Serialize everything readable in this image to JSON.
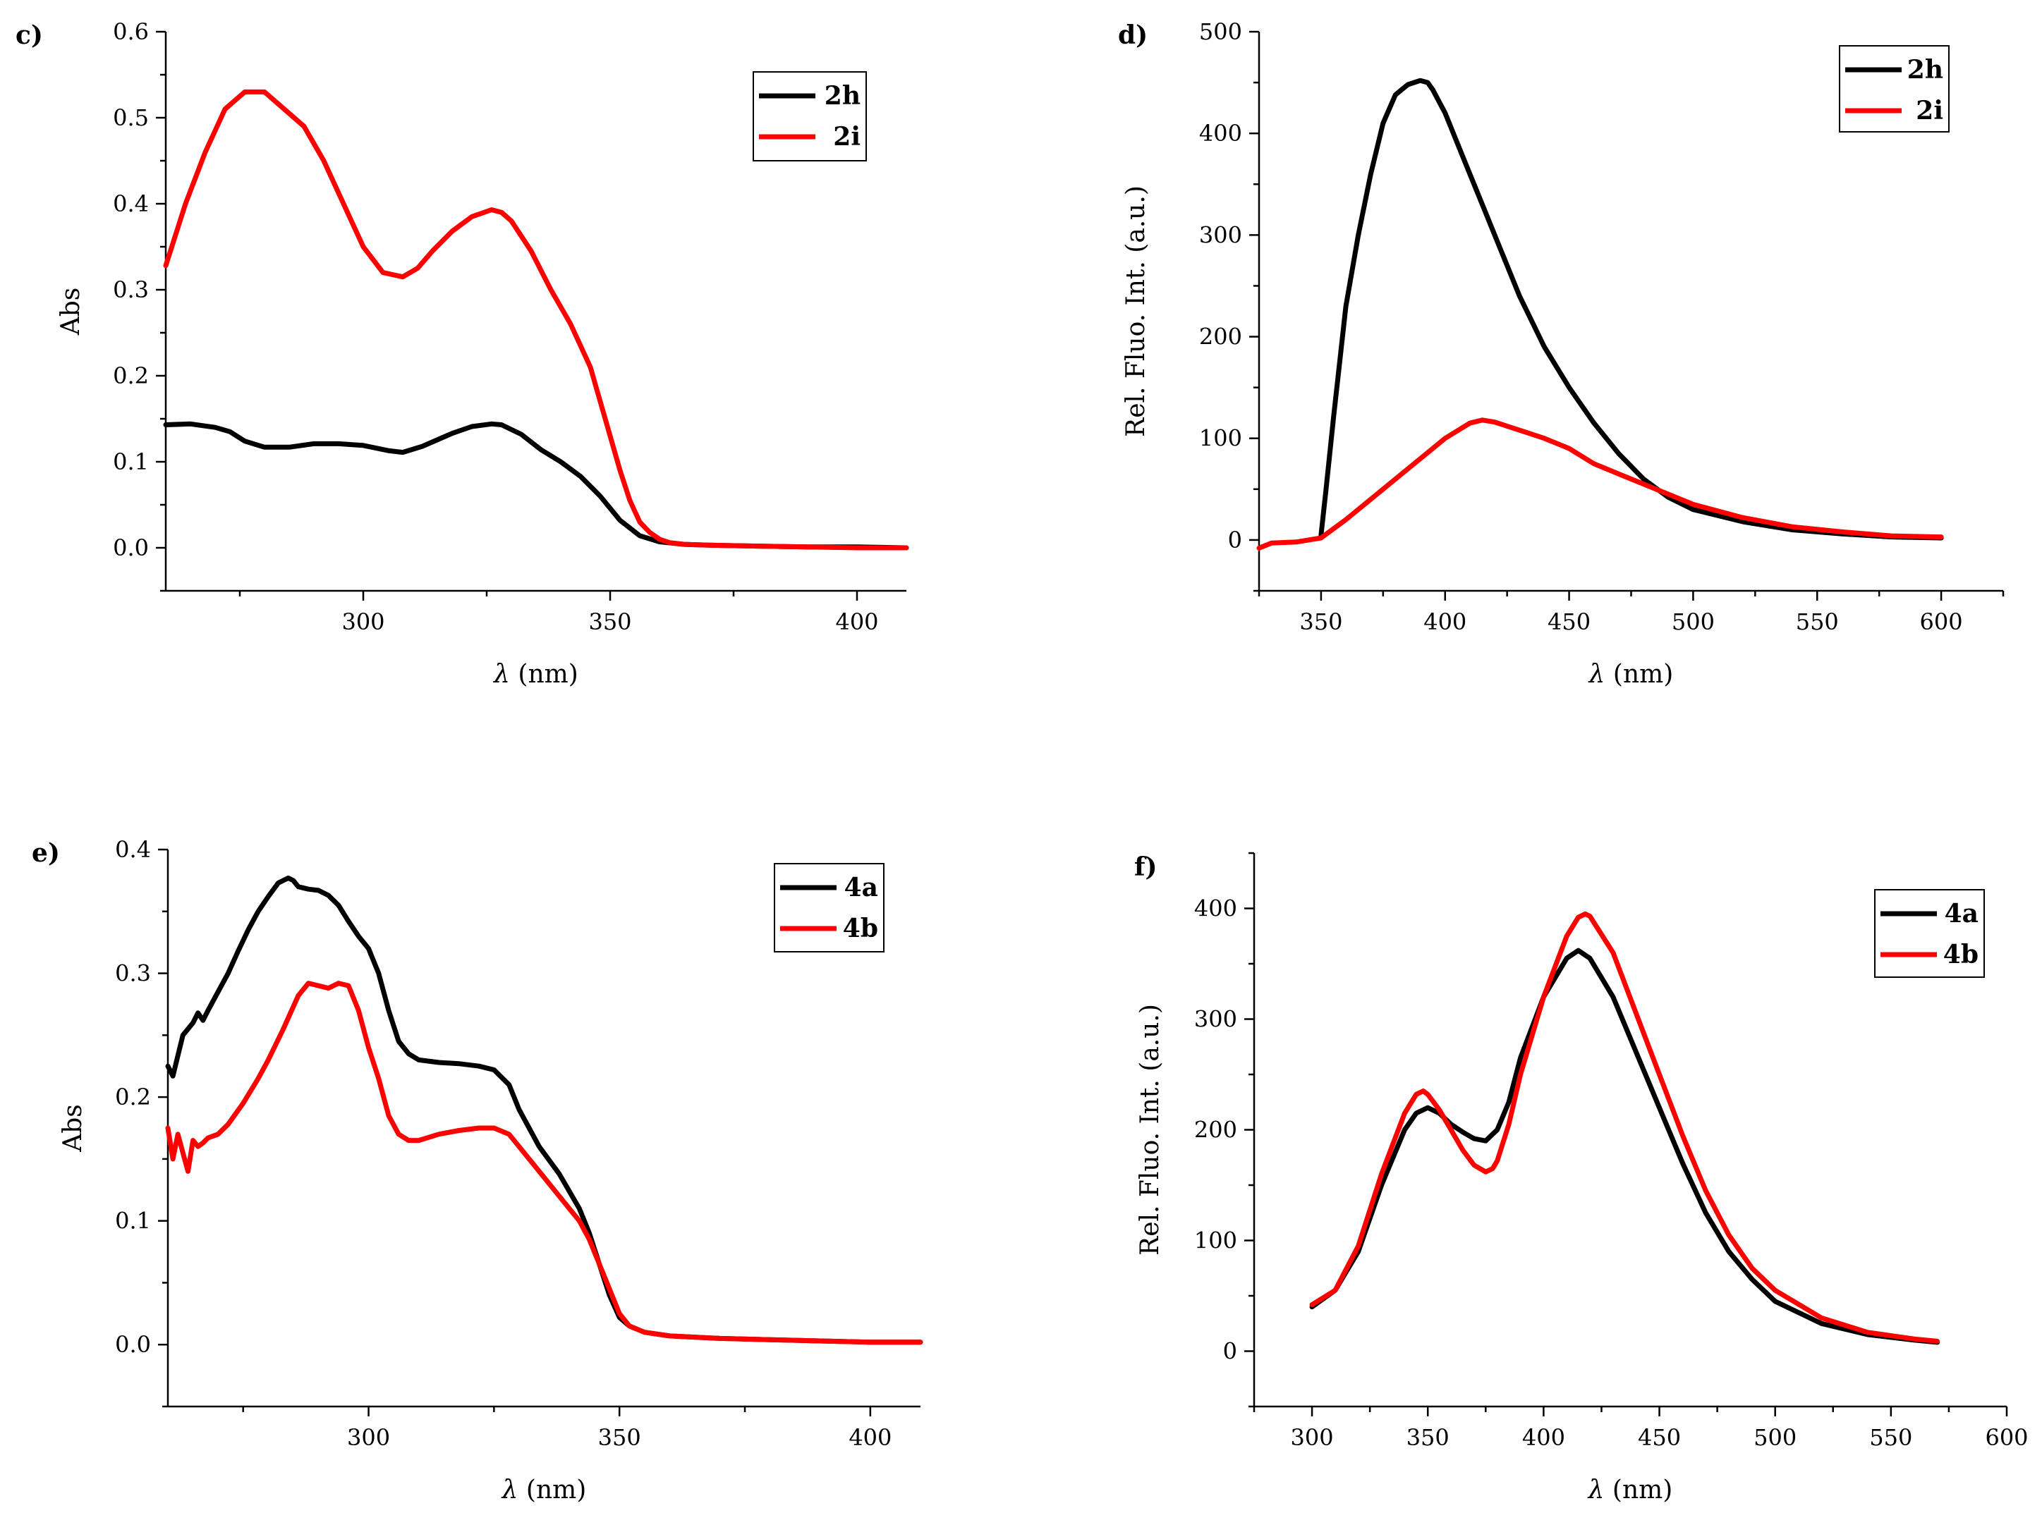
{
  "colors": {
    "black": "#000000",
    "red": "#ff0000"
  },
  "chart_data": [
    {
      "panel": "c)",
      "type": "line",
      "xlabel_symbol": "λ",
      "xlabel_unit": " (nm)",
      "ylabel": "Abs",
      "xlim": [
        260,
        410
      ],
      "ylim": [
        -0.05,
        0.6
      ],
      "xticks": [
        300,
        350,
        400
      ],
      "xticks_minor": [
        275,
        325,
        375
      ],
      "yticks": [
        0.0,
        0.1,
        0.2,
        0.3,
        0.4,
        0.5,
        0.6
      ],
      "ytick_labels": [
        "0.0",
        "0.1",
        "0.2",
        "0.3",
        "0.4",
        "0.5",
        "0.6"
      ],
      "yticks_minor": [
        -0.05,
        0.05,
        0.15,
        0.25,
        0.35,
        0.45,
        0.55
      ],
      "legend_position": "top-right",
      "series": [
        {
          "name": "2h",
          "color": "#000000",
          "x": [
            260,
            265,
            270,
            273,
            276,
            280,
            285,
            290,
            295,
            300,
            305,
            308,
            312,
            318,
            322,
            326,
            328,
            332,
            336,
            340,
            344,
            348,
            352,
            356,
            360,
            365,
            370,
            380,
            390,
            400,
            410
          ],
          "y": [
            0.143,
            0.144,
            0.14,
            0.135,
            0.124,
            0.117,
            0.117,
            0.121,
            0.121,
            0.119,
            0.113,
            0.111,
            0.118,
            0.133,
            0.141,
            0.144,
            0.143,
            0.132,
            0.114,
            0.1,
            0.083,
            0.06,
            0.032,
            0.014,
            0.007,
            0.004,
            0.003,
            0.002,
            0.001,
            0.001,
            0.0
          ]
        },
        {
          "name": "2i",
          "color": "#ff0000",
          "x": [
            260,
            264,
            268,
            272,
            276,
            280,
            284,
            288,
            292,
            296,
            300,
            304,
            308,
            311,
            314,
            318,
            322,
            326,
            328,
            330,
            334,
            338,
            342,
            346,
            350,
            352,
            354,
            356,
            358,
            360,
            362,
            365,
            370,
            380,
            390,
            400,
            410
          ],
          "y": [
            0.328,
            0.4,
            0.46,
            0.51,
            0.53,
            0.53,
            0.51,
            0.49,
            0.45,
            0.4,
            0.35,
            0.32,
            0.315,
            0.325,
            0.345,
            0.368,
            0.385,
            0.393,
            0.39,
            0.38,
            0.345,
            0.3,
            0.26,
            0.21,
            0.13,
            0.09,
            0.055,
            0.03,
            0.018,
            0.01,
            0.006,
            0.004,
            0.003,
            0.002,
            0.001,
            0.0,
            0.0
          ]
        }
      ]
    },
    {
      "panel": "d)",
      "type": "line",
      "xlabel_symbol": "λ",
      "xlabel_unit": " (nm)",
      "ylabel": "Rel. Fluo. Int. (a.u.)",
      "xlim": [
        325,
        625
      ],
      "ylim": [
        -50,
        500
      ],
      "xticks": [
        350,
        400,
        450,
        500,
        550,
        600
      ],
      "xticks_minor": [
        325,
        375,
        425,
        475,
        525,
        575,
        625
      ],
      "yticks": [
        0,
        100,
        200,
        300,
        400,
        500
      ],
      "ytick_labels": [
        "0",
        "100",
        "200",
        "300",
        "400",
        "500"
      ],
      "yticks_minor": [
        -50,
        50,
        150,
        250,
        350,
        450
      ],
      "legend_position": "top-right",
      "series": [
        {
          "name": "2h",
          "color": "#000000",
          "x": [
            350,
            352,
            355,
            360,
            365,
            370,
            375,
            380,
            385,
            390,
            393,
            395,
            400,
            405,
            410,
            415,
            420,
            430,
            440,
            450,
            460,
            470,
            480,
            490,
            500,
            520,
            540,
            560,
            580,
            600
          ],
          "y": [
            5,
            50,
            120,
            230,
            300,
            360,
            410,
            438,
            448,
            452,
            450,
            443,
            420,
            390,
            360,
            330,
            300,
            240,
            190,
            150,
            115,
            85,
            60,
            42,
            30,
            18,
            10,
            6,
            3,
            2
          ]
        },
        {
          "name": "2i",
          "color": "#ff0000",
          "x": [
            325,
            330,
            340,
            350,
            360,
            370,
            380,
            390,
            400,
            410,
            415,
            420,
            430,
            440,
            450,
            460,
            470,
            480,
            490,
            500,
            520,
            540,
            560,
            580,
            600
          ],
          "y": [
            -8,
            -3,
            -2,
            2,
            20,
            40,
            60,
            80,
            100,
            115,
            118,
            116,
            108,
            100,
            90,
            75,
            65,
            55,
            45,
            35,
            22,
            13,
            8,
            4,
            3
          ]
        }
      ]
    },
    {
      "panel": "e)",
      "type": "line",
      "xlabel_symbol": "λ",
      "xlabel_unit": " (nm)",
      "ylabel": "Abs",
      "xlim": [
        260,
        410
      ],
      "ylim": [
        -0.05,
        0.4
      ],
      "xticks": [
        300,
        350,
        400
      ],
      "xticks_minor": [
        275,
        325,
        375
      ],
      "yticks": [
        0.0,
        0.1,
        0.2,
        0.3,
        0.4
      ],
      "ytick_labels": [
        "0.0",
        "0.1",
        "0.2",
        "0.3",
        "0.4"
      ],
      "yticks_minor": [
        -0.05,
        0.05,
        0.15,
        0.25,
        0.35
      ],
      "legend_position": "top-right",
      "series": [
        {
          "name": "4a",
          "color": "#000000",
          "x": [
            260,
            261,
            263,
            265,
            266,
            267,
            268,
            270,
            272,
            274,
            276,
            278,
            280,
            282,
            284,
            285,
            286,
            288,
            290,
            292,
            294,
            296,
            298,
            300,
            302,
            304,
            306,
            308,
            310,
            314,
            318,
            322,
            325,
            328,
            330,
            334,
            338,
            342,
            344,
            346,
            348,
            350,
            352,
            355,
            360,
            370,
            380,
            390,
            400,
            410
          ],
          "y": [
            0.225,
            0.217,
            0.25,
            0.26,
            0.268,
            0.262,
            0.27,
            0.285,
            0.3,
            0.318,
            0.335,
            0.35,
            0.362,
            0.373,
            0.377,
            0.375,
            0.37,
            0.368,
            0.367,
            0.363,
            0.355,
            0.342,
            0.33,
            0.32,
            0.3,
            0.27,
            0.245,
            0.235,
            0.23,
            0.228,
            0.227,
            0.225,
            0.222,
            0.21,
            0.19,
            0.16,
            0.138,
            0.11,
            0.09,
            0.065,
            0.04,
            0.022,
            0.015,
            0.01,
            0.007,
            0.005,
            0.004,
            0.003,
            0.002,
            0.002
          ]
        },
        {
          "name": "4b",
          "color": "#ff0000",
          "x": [
            260,
            261,
            262,
            263,
            264,
            265,
            266,
            267,
            268,
            270,
            272,
            275,
            278,
            280,
            283,
            286,
            288,
            290,
            292,
            294,
            296,
            298,
            300,
            302,
            304,
            306,
            308,
            310,
            314,
            318,
            322,
            325,
            328,
            330,
            334,
            338,
            342,
            344,
            346,
            348,
            350,
            352,
            355,
            360,
            370,
            380,
            390,
            400,
            410
          ],
          "y": [
            0.175,
            0.15,
            0.17,
            0.155,
            0.14,
            0.165,
            0.16,
            0.163,
            0.167,
            0.17,
            0.178,
            0.195,
            0.215,
            0.23,
            0.255,
            0.282,
            0.292,
            0.29,
            0.288,
            0.292,
            0.29,
            0.27,
            0.24,
            0.215,
            0.185,
            0.17,
            0.165,
            0.165,
            0.17,
            0.173,
            0.175,
            0.175,
            0.17,
            0.16,
            0.14,
            0.12,
            0.1,
            0.085,
            0.065,
            0.045,
            0.025,
            0.015,
            0.01,
            0.007,
            0.005,
            0.004,
            0.003,
            0.002,
            0.002
          ]
        }
      ]
    },
    {
      "panel": "f)",
      "type": "line",
      "xlabel_symbol": "λ",
      "xlabel_unit": " (nm)",
      "ylabel": "Rel. Fluo. Int. (a.u.)",
      "xlim": [
        275,
        600
      ],
      "ylim": [
        -50,
        450
      ],
      "xticks": [
        300,
        350,
        400,
        450,
        500,
        550,
        600
      ],
      "xticks_minor": [
        275,
        325,
        375,
        425,
        475,
        525,
        575
      ],
      "yticks": [
        0,
        100,
        200,
        300,
        400
      ],
      "ytick_labels": [
        "0",
        "100",
        "200",
        "300",
        "400"
      ],
      "yticks_minor": [
        -50,
        50,
        150,
        250,
        350,
        450
      ],
      "legend_position": "top-right",
      "series": [
        {
          "name": "4a",
          "color": "#000000",
          "x": [
            300,
            310,
            320,
            330,
            340,
            345,
            350,
            355,
            360,
            365,
            370,
            375,
            380,
            385,
            390,
            400,
            410,
            415,
            420,
            430,
            440,
            450,
            460,
            470,
            480,
            490,
            500,
            520,
            540,
            560,
            570
          ],
          "y": [
            40,
            55,
            90,
            150,
            200,
            215,
            220,
            215,
            205,
            198,
            192,
            190,
            200,
            225,
            265,
            320,
            355,
            362,
            355,
            320,
            270,
            220,
            170,
            125,
            90,
            65,
            45,
            25,
            15,
            10,
            8
          ]
        },
        {
          "name": "4b",
          "color": "#ff0000",
          "x": [
            300,
            310,
            320,
            330,
            340,
            345,
            348,
            350,
            355,
            360,
            365,
            370,
            375,
            378,
            380,
            385,
            390,
            400,
            410,
            415,
            418,
            420,
            430,
            440,
            450,
            460,
            470,
            480,
            490,
            500,
            520,
            540,
            560,
            570
          ],
          "y": [
            42,
            55,
            95,
            160,
            215,
            232,
            235,
            232,
            218,
            200,
            182,
            168,
            162,
            165,
            172,
            205,
            250,
            320,
            375,
            392,
            395,
            393,
            360,
            305,
            250,
            195,
            145,
            105,
            75,
            55,
            30,
            17,
            11,
            9
          ]
        }
      ]
    }
  ]
}
